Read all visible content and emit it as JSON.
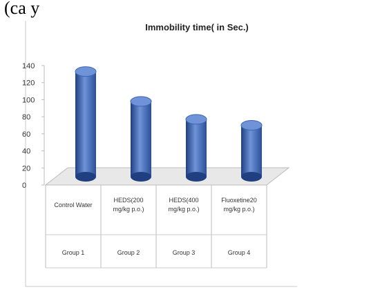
{
  "header_fragment": "(ca                                    y",
  "chart_data": {
    "type": "bar",
    "title": "Immobility time( in Sec.)",
    "xlabel": "",
    "ylabel": "",
    "ylim": [
      0,
      140
    ],
    "yticks": [
      "0",
      "20",
      "40",
      "60",
      "80",
      "100",
      "120",
      "140"
    ],
    "categories": [
      {
        "lines": [
          "Control Water"
        ],
        "group": "Group 1"
      },
      {
        "lines": [
          "HEDS(200",
          "mg/kg p.o.)"
        ],
        "group": "Group 2"
      },
      {
        "lines": [
          "HEDS(400",
          "mg/kg p.o.)"
        ],
        "group": "Group 3"
      },
      {
        "lines": [
          "Fluoxetine20",
          "mg/kg p.o.)"
        ],
        "group": "Group 4"
      }
    ],
    "values": [
      133,
      98,
      77,
      70
    ],
    "grid": false,
    "legend": "none",
    "colors": {
      "bar": "#3a66b8",
      "bar_dark": "#1f3f80",
      "bar_light": "#6f93d6",
      "floor": "#e8e8e8"
    }
  }
}
